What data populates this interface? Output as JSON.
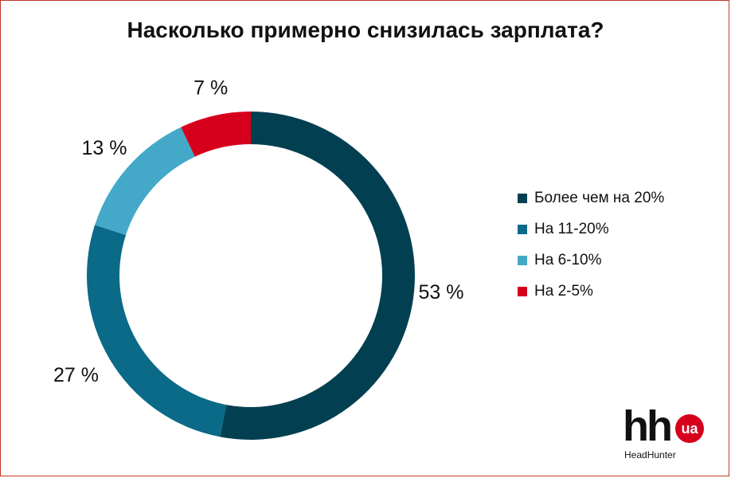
{
  "chart_data": {
    "type": "pie",
    "title": "Насколько примерно снизилась зарплата?",
    "categories": [
      "Более чем на 20%",
      "На 11-20%",
      "На 6-10%",
      "На 2-5%"
    ],
    "values": [
      53,
      27,
      13,
      7
    ],
    "labels": [
      "53 %",
      "27 %",
      "13 %",
      "7 %"
    ],
    "colors": [
      "#023f51",
      "#0b6a87",
      "#44a9c9",
      "#d6001c"
    ],
    "donut": true,
    "legend_position": "right"
  },
  "logo": {
    "mark": "hh",
    "badge": "ua",
    "subtitle": "HeadHunter"
  }
}
